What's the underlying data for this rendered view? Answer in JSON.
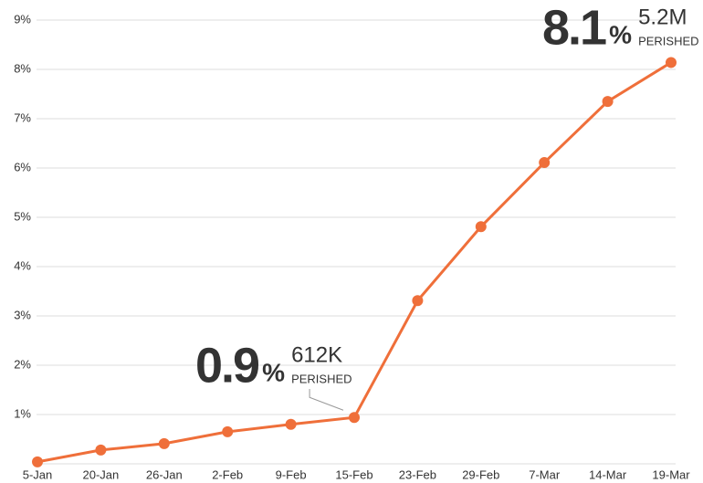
{
  "chart_data": {
    "type": "line",
    "categories": [
      "5-Jan",
      "20-Jan",
      "26-Jan",
      "2-Feb",
      "9-Feb",
      "15-Feb",
      "23-Feb",
      "29-Feb",
      "7-Mar",
      "14-Mar",
      "19-Mar"
    ],
    "series": [
      {
        "color": "#ef6f3a",
        "values": [
          0.04,
          0.28,
          0.41,
          0.65,
          0.8,
          0.94,
          3.31,
          4.81,
          6.11,
          7.35,
          8.14
        ],
        "value_labels": [
          null,
          null,
          null,
          null,
          null,
          "0.9",
          null,
          null,
          null,
          null,
          "8.1"
        ]
      }
    ],
    "annotations": [
      {
        "unit": "%",
        "count": "612K",
        "note": "PERISHED"
      },
      {
        "unit": "%",
        "count": "5.2M",
        "note": "PERISHED"
      }
    ],
    "ylim": [
      0,
      9
    ],
    "yticks": [
      {
        "value": 1,
        "label": "1%"
      },
      {
        "value": 2,
        "label": "2%"
      },
      {
        "value": 3,
        "label": "3%"
      },
      {
        "value": 4,
        "label": "4%"
      },
      {
        "value": 5,
        "label": "5%"
      },
      {
        "value": 6,
        "label": "6%"
      },
      {
        "value": 7,
        "label": "7%"
      },
      {
        "value": 8,
        "label": "8%"
      },
      {
        "value": 9,
        "label": "9%"
      }
    ],
    "grid": true
  }
}
